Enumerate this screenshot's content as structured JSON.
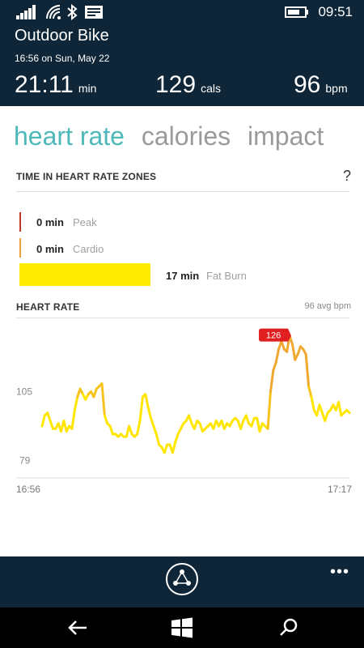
{
  "status_bar": {
    "time": "09:51",
    "icons": [
      "signal-bars-icon",
      "wifi-icon",
      "bluetooth-icon",
      "message-icon",
      "battery-icon"
    ]
  },
  "activity": {
    "title": "Outdoor Bike",
    "subtitle": "16:56 on Sun, May 22",
    "duration": {
      "value": "21:11",
      "unit": "min"
    },
    "calories": {
      "value": "129",
      "unit": "cals"
    },
    "heart_rate": {
      "value": "96",
      "unit": "bpm"
    }
  },
  "tabs": [
    {
      "label": "heart rate",
      "active": true
    },
    {
      "label": "calories",
      "active": false
    },
    {
      "label": "impact",
      "active": false
    }
  ],
  "zones": {
    "heading": "TIME IN HEART RATE ZONES",
    "help": "?",
    "items": [
      {
        "value": "0 min",
        "label": "Peak",
        "color": "#c0392b"
      },
      {
        "value": "0 min",
        "label": "Cardio",
        "color": "#e8a03b"
      },
      {
        "value": "17 min",
        "label": "Fat Burn",
        "color": "#ffeb00"
      }
    ]
  },
  "heart_rate_section": {
    "heading": "HEART RATE",
    "avg": "96 avg bpm",
    "peak_badge": "126"
  },
  "chart_data": {
    "type": "line",
    "title": "",
    "xlabel": "",
    "ylabel": "",
    "x_tick_labels": [
      "16:56",
      "17:17"
    ],
    "y_ticks": [
      79,
      105
    ],
    "ylim": [
      74,
      132
    ],
    "grid": false,
    "series": [
      {
        "values": [
          92,
          96,
          97,
          94,
          91,
          91,
          93,
          90,
          94,
          90,
          92,
          91,
          98,
          103,
          106,
          104,
          102,
          104,
          105,
          103,
          106,
          107,
          108,
          96,
          93,
          92,
          89,
          89,
          88,
          89,
          88,
          88,
          92,
          89,
          88,
          89,
          94,
          103,
          104,
          99,
          95,
          92,
          89,
          85,
          84,
          82,
          85,
          85,
          82,
          86,
          89,
          91,
          93,
          94,
          96,
          93,
          91,
          94,
          93,
          90,
          91,
          92,
          93,
          91,
          94,
          92,
          94,
          91,
          93,
          92,
          94,
          95,
          94,
          91,
          94,
          96,
          93,
          92,
          95,
          95,
          90,
          93,
          92,
          91,
          105,
          113,
          116,
          121,
          124,
          121,
          120,
          126,
          123,
          117,
          119,
          122,
          121,
          119,
          107,
          103,
          98,
          96,
          100,
          97,
          94,
          97,
          98,
          100,
          98,
          101,
          96,
          97,
          98,
          97
        ]
      }
    ],
    "peak_value": 126
  },
  "app_bar": {
    "more": "•••",
    "share_icon": "share-icon"
  },
  "nav_bar": {
    "icons": [
      "back-arrow-icon",
      "windows-start-icon",
      "search-icon"
    ]
  }
}
